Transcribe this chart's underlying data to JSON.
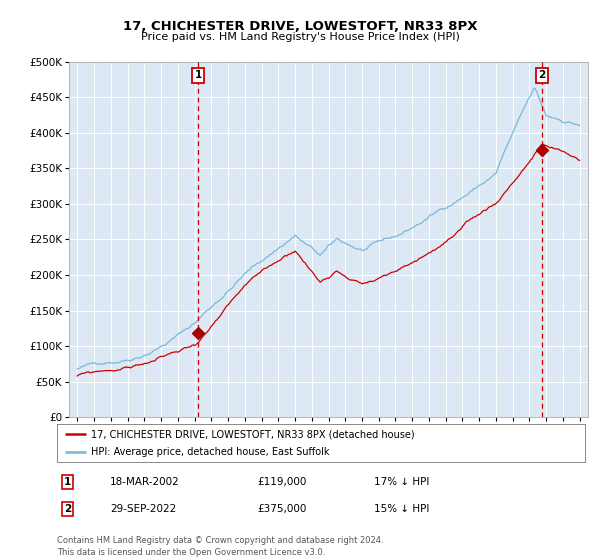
{
  "title": "17, CHICHESTER DRIVE, LOWESTOFT, NR33 8PX",
  "subtitle": "Price paid vs. HM Land Registry's House Price Index (HPI)",
  "legend_line1": "17, CHICHESTER DRIVE, LOWESTOFT, NR33 8PX (detached house)",
  "legend_line2": "HPI: Average price, detached house, East Suffolk",
  "annotation1_label": "1",
  "annotation1_date": "18-MAR-2002",
  "annotation1_price": "£119,000",
  "annotation1_hpi": "17% ↓ HPI",
  "annotation1_year": 2002.21,
  "annotation1_value": 119000,
  "annotation2_label": "2",
  "annotation2_date": "29-SEP-2022",
  "annotation2_price": "£375,000",
  "annotation2_hpi": "15% ↓ HPI",
  "annotation2_year": 2022.75,
  "annotation2_value": 375000,
  "hpi_color": "#7ab8d9",
  "price_color": "#cc0000",
  "marker_color": "#aa0000",
  "dashed_line_color": "#cc0000",
  "bg_color": "#dce9f5",
  "grid_color": "#ffffff",
  "footer": "Contains HM Land Registry data © Crown copyright and database right 2024.\nThis data is licensed under the Open Government Licence v3.0.",
  "ylim": [
    0,
    500000
  ],
  "yticks": [
    0,
    50000,
    100000,
    150000,
    200000,
    250000,
    300000,
    350000,
    400000,
    450000,
    500000
  ],
  "xlim_start": 1994.5,
  "xlim_end": 2025.5
}
